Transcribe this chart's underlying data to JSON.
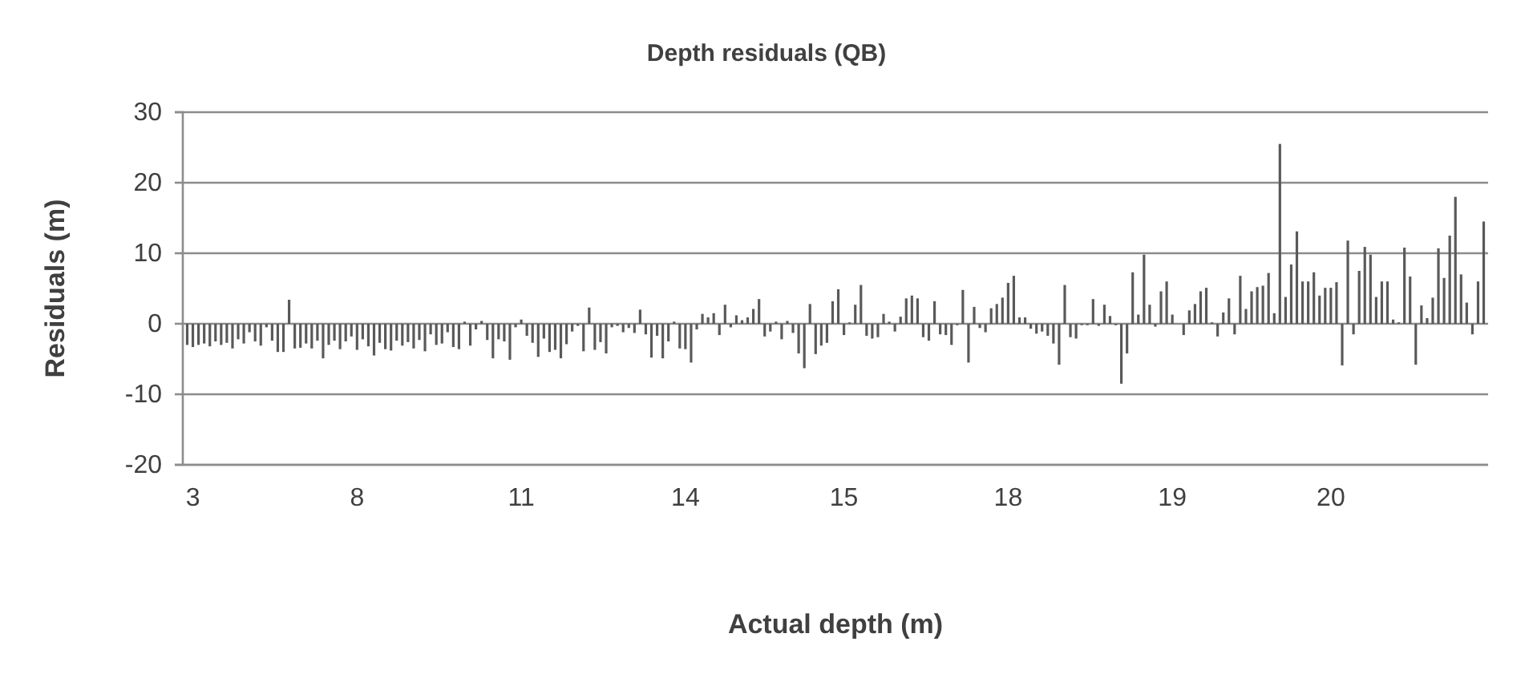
{
  "chart_data": {
    "type": "bar",
    "title": "Depth residuals (QB)",
    "xlabel": "Actual depth (m)",
    "ylabel": "Residuals (m)",
    "categories": [
      null,
      "3",
      null,
      null,
      null,
      null,
      null,
      null,
      null,
      null,
      null,
      null,
      null,
      null,
      null,
      null,
      null,
      null,
      null,
      null,
      null,
      null,
      null,
      null,
      null,
      null,
      null,
      null,
      null,
      null,
      "8",
      null,
      null,
      null,
      null,
      null,
      null,
      null,
      null,
      null,
      null,
      null,
      null,
      null,
      null,
      null,
      null,
      null,
      null,
      null,
      null,
      null,
      null,
      null,
      null,
      null,
      null,
      null,
      null,
      "11",
      null,
      null,
      null,
      null,
      null,
      null,
      null,
      null,
      null,
      null,
      null,
      null,
      null,
      null,
      null,
      null,
      null,
      null,
      null,
      null,
      null,
      null,
      null,
      null,
      null,
      null,
      null,
      null,
      "14",
      null,
      null,
      null,
      null,
      null,
      null,
      null,
      null,
      null,
      null,
      null,
      null,
      null,
      null,
      null,
      null,
      null,
      null,
      null,
      null,
      null,
      null,
      null,
      null,
      null,
      null,
      null,
      "15",
      null,
      null,
      null,
      null,
      null,
      null,
      null,
      null,
      null,
      null,
      null,
      null,
      null,
      null,
      null,
      null,
      null,
      null,
      null,
      null,
      null,
      null,
      null,
      null,
      null,
      null,
      null,
      null,
      "18",
      null,
      null,
      null,
      null,
      null,
      null,
      null,
      null,
      null,
      null,
      null,
      null,
      null,
      null,
      null,
      null,
      null,
      null,
      null,
      null,
      null,
      null,
      null,
      null,
      null,
      null,
      null,
      null,
      "19",
      null,
      null,
      null,
      null,
      null,
      null,
      null,
      null,
      null,
      null,
      null,
      null,
      null,
      null,
      null,
      null,
      null,
      null,
      null,
      null,
      null,
      null,
      null,
      null,
      null,
      null,
      null,
      "20",
      null,
      null,
      null,
      null,
      null,
      null,
      null,
      null,
      null,
      null,
      null,
      null,
      null,
      null,
      null,
      null,
      null,
      null,
      null,
      null,
      null,
      null,
      null,
      null,
      null,
      null,
      null
    ],
    "values": [
      -3,
      -3.3,
      -3,
      -2.8,
      -3.2,
      -2.5,
      -3,
      -2.7,
      -3.5,
      -2.2,
      -2.8,
      -1.2,
      -2.5,
      -3.1,
      -0.5,
      -2.4,
      -4,
      -4,
      3.4,
      -3.5,
      -3.4,
      -2.8,
      -3.5,
      -2.4,
      -4.9,
      -3,
      -2.4,
      -3.6,
      -2.5,
      -1.8,
      -3.7,
      -2.2,
      -3.2,
      -4.5,
      -2.7,
      -3.6,
      -3.8,
      -2.4,
      -3.1,
      -2.6,
      -3.5,
      -2.3,
      -3.9,
      -1.5,
      -3,
      -2.8,
      -1.2,
      -3.3,
      -3.6,
      0.3,
      -3.1,
      -0.8,
      0.4,
      -2.3,
      -4.9,
      -2.2,
      -2.5,
      -5.1,
      -0.5,
      0.6,
      -1.7,
      -2.7,
      -4.7,
      -2.1,
      -4,
      -3.7,
      -4.9,
      -2.9,
      -1.1,
      -0.3,
      -3.9,
      2.3,
      -3.7,
      -2.6,
      -4.2,
      -0.5,
      -0.3,
      -1.2,
      -0.6,
      -1.3,
      2,
      -1.5,
      -4.8,
      -1.7,
      -4.9,
      -2.5,
      0.3,
      -3.5,
      -3.6,
      -5.5,
      -0.8,
      1.4,
      0.9,
      1.5,
      -1.6,
      2.7,
      -0.5,
      1.2,
      0.5,
      0.9,
      2.1,
      3.5,
      -1.8,
      -1.1,
      0.3,
      -2.2,
      0.4,
      -1.3,
      -4.2,
      -6.3,
      2.8,
      -4.3,
      -3.1,
      -2.7,
      3.2,
      4.9,
      -1.6,
      0.2,
      2.7,
      5.5,
      -1.7,
      -2.1,
      -1.9,
      1.4,
      0.3,
      -1.1,
      1,
      3.6,
      4,
      3.6,
      -1.9,
      -2.4,
      3.2,
      -1.5,
      -1.6,
      -3,
      -0.2,
      4.8,
      -5.5,
      2.4,
      -0.6,
      -1.2,
      2.2,
      2.8,
      3.7,
      5.8,
      6.8,
      0.9,
      0.9,
      -0.7,
      -1.4,
      -1.1,
      -1.7,
      -2.8,
      -5.8,
      5.5,
      -1.9,
      -2.1,
      -0.2,
      -0.2,
      3.5,
      -0.3,
      2.7,
      1.1,
      -0.2,
      -8.5,
      -4.2,
      7.3,
      1.3,
      9.8,
      2.7,
      -0.4,
      4.6,
      6,
      1.3,
      0,
      -1.6,
      1.9,
      2.8,
      4.6,
      5.1,
      0.2,
      -1.8,
      1.6,
      3.6,
      -1.5,
      6.8,
      2.1,
      4.6,
      5.2,
      5.4,
      7.2,
      1.5,
      25.5,
      3.8,
      8.4,
      13.1,
      6,
      6,
      7.3,
      4,
      5.1,
      5.1,
      5.9,
      -5.9,
      11.8,
      -1.5,
      7.5,
      10.9,
      9.8,
      3.8,
      6,
      6,
      0.6,
      0.2,
      10.8,
      6.7,
      -5.8,
      2.6,
      0.8,
      3.7,
      10.7,
      6.5,
      12.5,
      18,
      7,
      3,
      -1.5,
      6,
      14.5
    ],
    "color": "#595959",
    "ylim": [
      -20,
      30
    ],
    "yticks": [
      -20,
      -10,
      0,
      10,
      20,
      30
    ],
    "grid": "y"
  }
}
